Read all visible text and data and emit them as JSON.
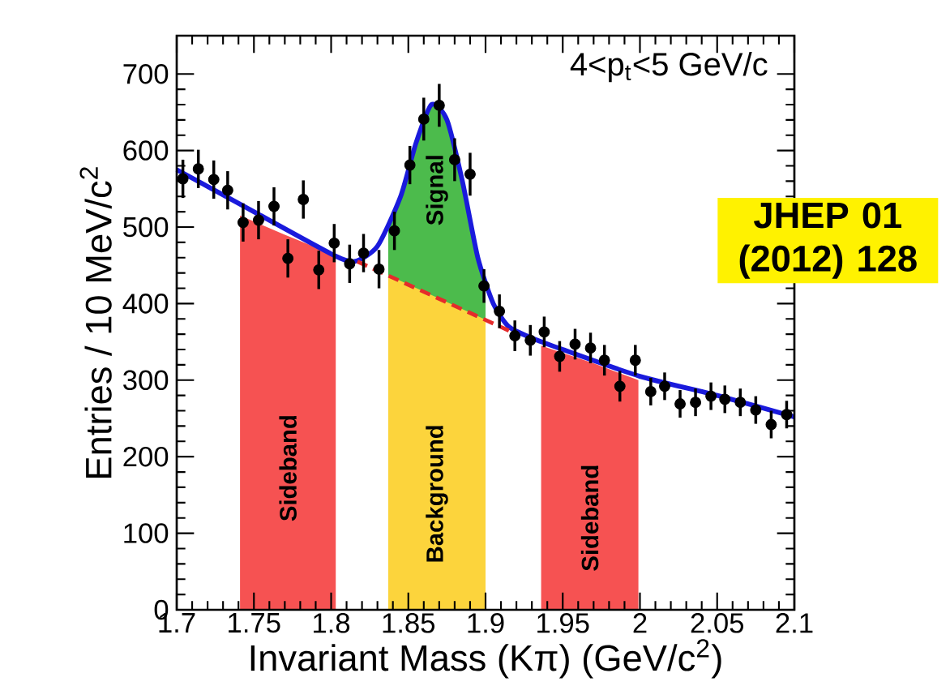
{
  "chart_data": {
    "type": "scatter",
    "xlabel": "Invariant Mass (Kπ) (GeV/c$^{2}$)",
    "ylabel": "Entries / 10 MeV/c$^{2}$",
    "annotations": [
      "4<p$_{t}$<5 GeV/c",
      "JHEP 01 (2012) 128"
    ],
    "xlim": [
      1.7,
      2.1
    ],
    "ylim": [
      0,
      750
    ],
    "xticks": [
      1.7,
      1.75,
      1.8,
      1.85,
      1.9,
      1.95,
      2,
      2.05,
      2.1
    ],
    "yticks": [
      0,
      100,
      200,
      300,
      400,
      500,
      600,
      700
    ],
    "series": [
      {
        "type": "area",
        "name": "Sideband",
        "color": "#f65252",
        "x": [
          1.741,
          1.77,
          1.803
        ],
        "values": [
          515,
          490,
          463
        ]
      },
      {
        "type": "area",
        "name": "Sideband",
        "color": "#f65252",
        "x": [
          1.936,
          1.97,
          1.999
        ],
        "values": [
          345,
          322,
          300
        ]
      },
      {
        "type": "area",
        "name": "Signal",
        "color": "#4cbb4c",
        "x": [
          1.837,
          1.845,
          1.855,
          1.865,
          1.875,
          1.885,
          1.895,
          1.9
        ],
        "values": [
          500,
          540,
          610,
          660,
          640,
          560,
          460,
          420
        ]
      },
      {
        "type": "area",
        "name": "Background",
        "color": "#fcd43c",
        "x": [
          1.837,
          1.9
        ],
        "values": [
          437,
          379
        ]
      },
      {
        "type": "line",
        "color": "#1a1adc",
        "x": [
          1.7,
          1.75,
          1.8,
          1.815,
          1.83,
          1.845,
          1.855,
          1.865,
          1.875,
          1.885,
          1.895,
          1.905,
          1.915,
          1.93,
          1.95,
          2.0,
          2.05,
          2.1
        ],
        "values": [
          575,
          520,
          465,
          455,
          475,
          540,
          610,
          660,
          640,
          560,
          460,
          400,
          370,
          355,
          340,
          305,
          280,
          252
        ]
      },
      {
        "type": "line",
        "line_style": "dashed",
        "color": "#e52b2b",
        "x": [
          1.817,
          1.918
        ],
        "values": [
          455,
          362
        ]
      },
      {
        "marker": "circle",
        "color": "#000000",
        "x": [
          1.704,
          1.714,
          1.724,
          1.733,
          1.743,
          1.753,
          1.763,
          1.772,
          1.782,
          1.792,
          1.802,
          1.812,
          1.821,
          1.831,
          1.841,
          1.851,
          1.86,
          1.87,
          1.88,
          1.89,
          1.899,
          1.909,
          1.919,
          1.929,
          1.938,
          1.948,
          1.958,
          1.968,
          1.977,
          1.987,
          1.997,
          2.007,
          2.016,
          2.026,
          2.036,
          2.046,
          2.055,
          2.065,
          2.075,
          2.085,
          2.095
        ],
        "values": [
          563,
          576,
          562,
          548,
          506,
          509,
          527,
          459,
          536,
          444,
          479,
          452,
          466,
          445,
          495,
          581,
          641,
          659,
          588,
          569,
          423,
          390,
          358,
          352,
          363,
          331,
          347,
          342,
          326,
          292,
          326,
          285,
          292,
          269,
          271,
          279,
          275,
          271,
          261,
          242,
          255
        ],
        "errors": [
          25,
          25,
          25,
          25,
          25,
          25,
          25,
          25,
          25,
          25,
          25,
          25,
          25,
          25,
          25,
          25,
          28,
          28,
          28,
          28,
          22,
          22,
          20,
          20,
          20,
          20,
          20,
          20,
          20,
          20,
          20,
          18,
          18,
          18,
          18,
          18,
          18,
          18,
          18,
          18,
          18
        ]
      }
    ]
  }
}
